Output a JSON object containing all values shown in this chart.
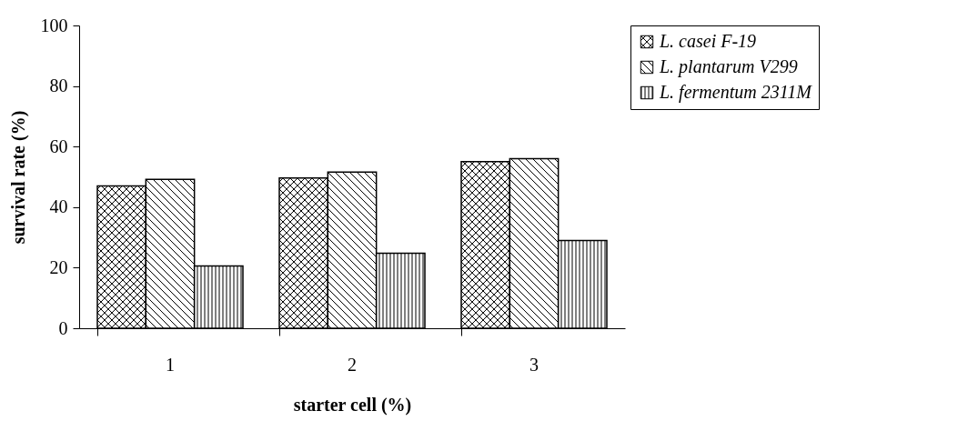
{
  "chart_data": {
    "type": "bar",
    "xlabel": "starter cell (%)",
    "ylabel": "survival rate (%)",
    "categories": [
      "1",
      "2",
      "3"
    ],
    "series": [
      {
        "name": "L. casei F-19",
        "color": "#000000",
        "values": [
          47,
          49.6,
          55
        ]
      },
      {
        "name": "L. plantarum V299",
        "color": "#000000",
        "values": [
          49.2,
          51.6,
          56
        ]
      },
      {
        "name": "L. fermentum 2311M",
        "color": "#000000",
        "values": [
          20.6,
          24.8,
          29
        ]
      }
    ],
    "ylim": [
      0,
      100
    ],
    "yticks": [
      0,
      20,
      40,
      60,
      80,
      100
    ],
    "grid": false,
    "legend": "right"
  }
}
